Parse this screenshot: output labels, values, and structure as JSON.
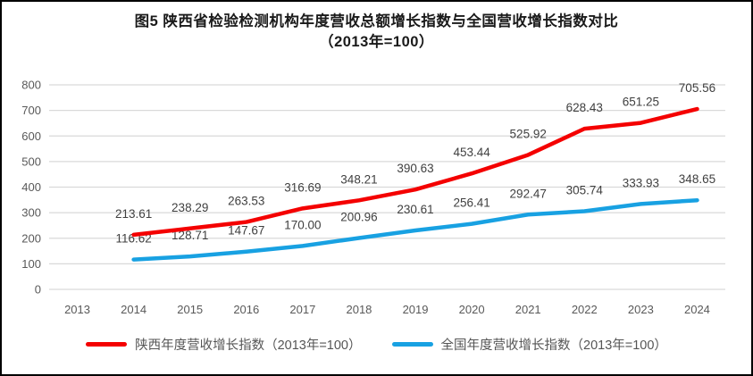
{
  "title": {
    "line1": "图5  陕西省检验检测机构年度营收总额增长指数与全国营收增长指数对比",
    "line2": "（2013年=100）"
  },
  "chart_data": {
    "type": "line",
    "x": [
      "2013",
      "2014",
      "2015",
      "2016",
      "2017",
      "2018",
      "2019",
      "2020",
      "2021",
      "2022",
      "2023",
      "2024"
    ],
    "xlabel": "",
    "ylabel": "",
    "ylim": [
      0,
      800
    ],
    "ytick_step": 100,
    "grid": true,
    "legend_position": "bottom",
    "series": [
      {
        "name": "陕西年度营收增长指数（2013年=100）",
        "color": "#f40000",
        "values": [
          null,
          213.61,
          238.29,
          263.53,
          316.69,
          348.21,
          390.63,
          453.44,
          525.92,
          628.43,
          651.25,
          705.56
        ],
        "point_labels": [
          null,
          "213.61",
          "238.29",
          "263.53",
          "316.69",
          "348.21",
          "390.63",
          "453.44",
          "525.92",
          "628.43",
          "651.25",
          "705.56"
        ]
      },
      {
        "name": "全国年度营收增长指数（2013年=100）",
        "color": "#18a1e2",
        "values": [
          null,
          116.62,
          128.71,
          147.67,
          170.0,
          200.96,
          230.61,
          256.41,
          292.47,
          305.74,
          333.93,
          348.65
        ],
        "point_labels": [
          null,
          "116.62",
          "128.71",
          "147.67",
          "170.00",
          "200.96",
          "230.61",
          "256.41",
          "292.47",
          "305.74",
          "333.93",
          "348.65"
        ]
      }
    ]
  },
  "colors": {
    "grid": "#d9d9d9",
    "axis_text": "#595959",
    "point_label_text": "#404040",
    "title_text": "#1a1a1a",
    "border": "#000000"
  }
}
